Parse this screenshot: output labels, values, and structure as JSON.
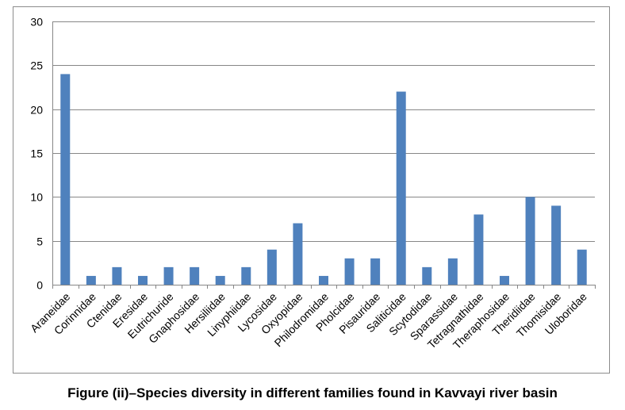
{
  "caption": "Figure (ii)–Species diversity in different families found in Kavvayi river basin",
  "chart_data": {
    "type": "bar",
    "title": "",
    "xlabel": "",
    "ylabel": "",
    "ylim": [
      0,
      30
    ],
    "yticks": [
      0,
      5,
      10,
      15,
      20,
      25,
      30
    ],
    "grid": true,
    "legend": "none",
    "bar_color": "#4f81bd",
    "grid_color": "#878787",
    "categories": [
      "Araneidae",
      "Corinnidae",
      "Ctenidae",
      "Eresidae",
      "Eutrichuride",
      "Gnaphosidae",
      "Hersiliidae",
      "Linyphiidae",
      "Lycosidae",
      "Oxyopidae",
      "Philodromidae",
      "Pholcidae",
      "Pisauridae",
      "Saliticidae",
      "Scytodidae",
      "Sparassidae",
      "Tetragnathidae",
      "Theraphosidae",
      "Theridiidae",
      "Thomisidae",
      "Uloboridae"
    ],
    "values": [
      24,
      1,
      2,
      1,
      2,
      2,
      1,
      2,
      4,
      7,
      1,
      3,
      3,
      22,
      2,
      3,
      8,
      1,
      10,
      9,
      4
    ]
  }
}
